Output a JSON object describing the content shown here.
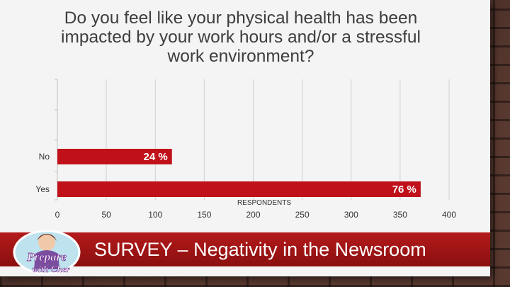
{
  "slide": {
    "footer_title": "SURVEY – Negativity in the Newsroom",
    "logo_text": "Prepare with Cher"
  },
  "colors": {
    "bar": "#c0111a",
    "banner": "#a11414",
    "grid": "#d0d0d0"
  },
  "chart_data": {
    "type": "bar",
    "orientation": "horizontal",
    "title": "Do you feel like your physical health has been impacted by your work hours and/or a stressful work environment?",
    "xlabel": "RESPONDENTS",
    "ylabel": "",
    "categories": [
      "No",
      "Yes"
    ],
    "values": [
      117,
      371
    ],
    "data_labels": [
      "24 %",
      "76 %"
    ],
    "xlim": [
      0,
      400
    ],
    "xticks": [
      0,
      50,
      100,
      150,
      200,
      250,
      300,
      350,
      400
    ],
    "grid": true,
    "legend": "none"
  }
}
